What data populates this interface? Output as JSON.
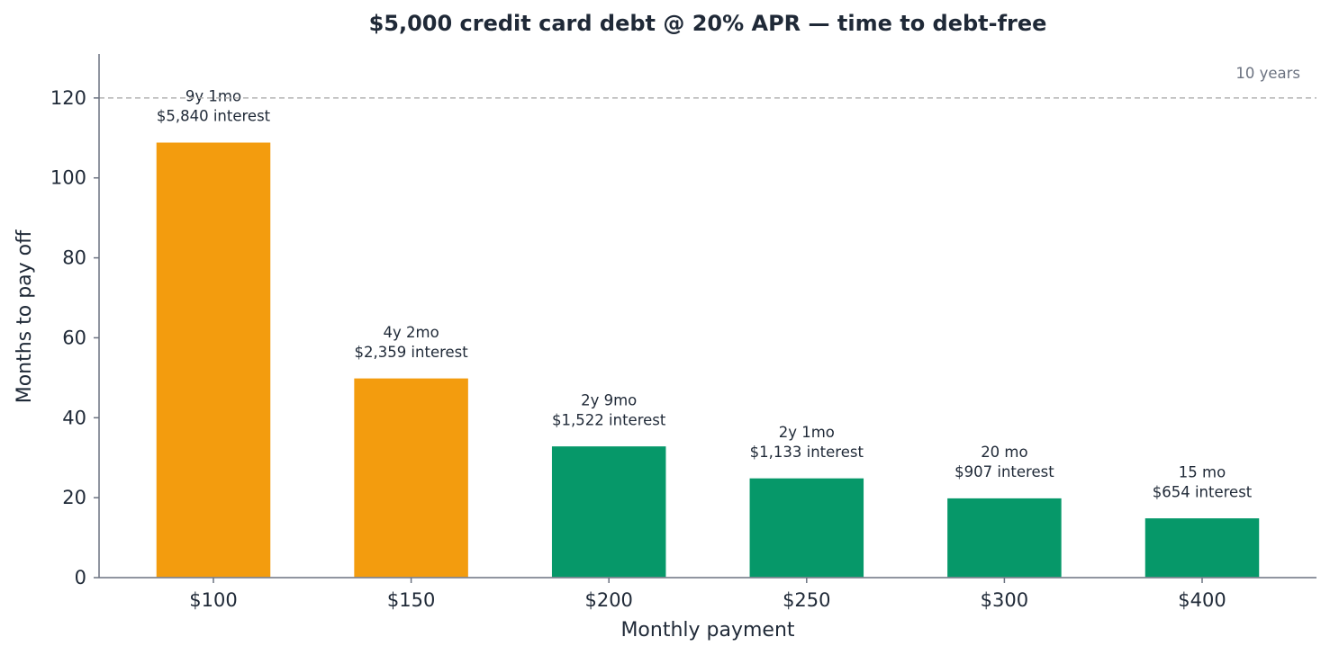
{
  "chart_data": {
    "type": "bar",
    "title": "$5,000 credit card debt @ 20% APR — time to debt-free",
    "xlabel": "Monthly payment",
    "ylabel": "Months to pay off",
    "categories": [
      "$100",
      "$150",
      "$200",
      "$250",
      "$300",
      "$400"
    ],
    "values": [
      109,
      50,
      33,
      25,
      20,
      15
    ],
    "bar_labels": [
      [
        "9y 1mo",
        "$5,840 interest"
      ],
      [
        "4y 2mo",
        "$2,359 interest"
      ],
      [
        "2y 9mo",
        "$1,522 interest"
      ],
      [
        "2y 1mo",
        "$1,133 interest"
      ],
      [
        "20 mo",
        "$907 interest"
      ],
      [
        "15 mo",
        "$654 interest"
      ]
    ],
    "bar_colors": [
      "#f39c0e",
      "#f39c0e",
      "#069869",
      "#069869",
      "#069869",
      "#069869"
    ],
    "ylim": [
      0,
      131
    ],
    "yticks": [
      0,
      20,
      40,
      60,
      80,
      100,
      120
    ],
    "reference_line": {
      "value": 120,
      "label": "10 years",
      "color": "#b3b3b3"
    },
    "grid": false
  }
}
